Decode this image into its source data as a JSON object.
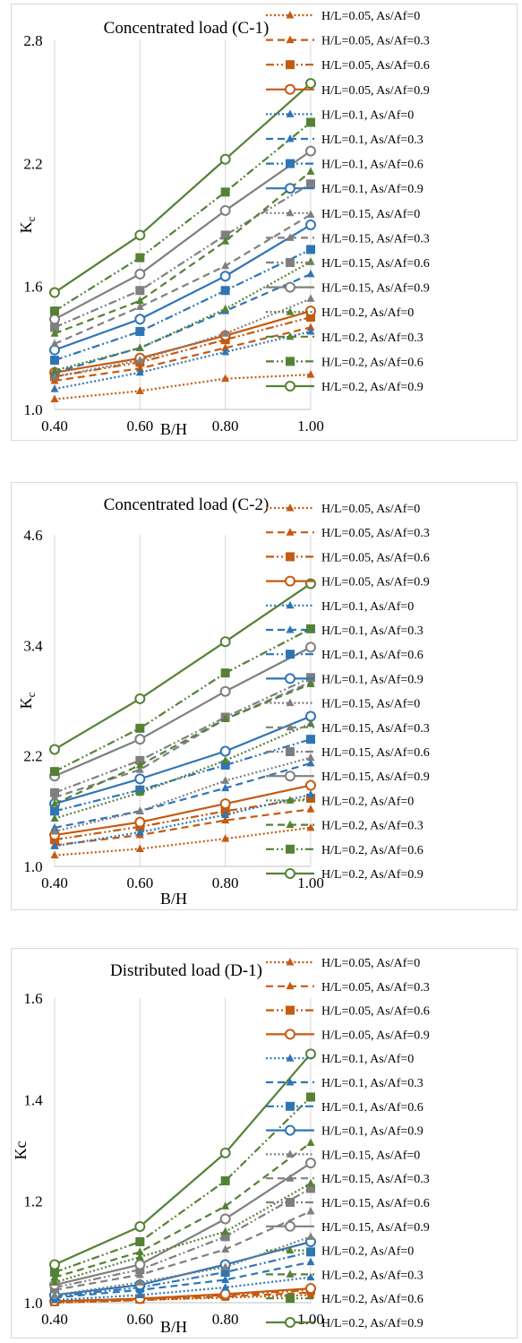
{
  "colors": {
    "orange": "#c55a11",
    "blue": "#2e75b6",
    "gray": "#7f7f7f",
    "green": "#548235",
    "grid": "#d9d9d9"
  },
  "chart_data": [
    {
      "type": "line",
      "title": "Concentrated load (C-1)",
      "xlabel": "B/H",
      "ylabel": "K",
      "ylabel_sub": "c",
      "categories": [
        "0.40",
        "0.60",
        "0.80",
        "1.00"
      ],
      "x_ticks": [
        "0.40",
        "0.60",
        "0.80",
        "1.00"
      ],
      "y_ticks": [
        "1.0",
        "1.6",
        "2.2",
        "2.8"
      ],
      "ylim": [
        1.0,
        2.8
      ],
      "grid": "vertical",
      "legend": "right",
      "series": [
        {
          "name": "H/L=0.05, As/Af=0",
          "color": "orange",
          "dash": "dotted",
          "marker": "triangle",
          "values": [
            1.05,
            1.09,
            1.15,
            1.17
          ]
        },
        {
          "name": "H/L=0.05, As/Af=0.3",
          "color": "orange",
          "dash": "dashed",
          "marker": "triangle",
          "values": [
            1.14,
            1.2,
            1.3,
            1.4
          ]
        },
        {
          "name": "H/L=0.05, As/Af=0.6",
          "color": "orange",
          "dash": "dashdotdot",
          "marker": "square",
          "values": [
            1.16,
            1.23,
            1.34,
            1.45
          ]
        },
        {
          "name": "H/L=0.05, As/Af=0.9",
          "color": "orange",
          "dash": "solid",
          "marker": "circle",
          "values": [
            1.18,
            1.25,
            1.36,
            1.48
          ]
        },
        {
          "name": "H/L=0.1, As/Af=0",
          "color": "blue",
          "dash": "dotted",
          "marker": "triangle",
          "values": [
            1.1,
            1.18,
            1.28,
            1.38
          ]
        },
        {
          "name": "H/L=0.1, As/Af=0.3",
          "color": "blue",
          "dash": "dashed",
          "marker": "triangle",
          "values": [
            1.18,
            1.3,
            1.48,
            1.66
          ]
        },
        {
          "name": "H/L=0.1, As/Af=0.6",
          "color": "blue",
          "dash": "dashdotdot",
          "marker": "square",
          "values": [
            1.24,
            1.38,
            1.58,
            1.78
          ]
        },
        {
          "name": "H/L=0.1, As/Af=0.9",
          "color": "blue",
          "dash": "solid",
          "marker": "circle",
          "values": [
            1.29,
            1.44,
            1.65,
            1.9
          ]
        },
        {
          "name": "H/L=0.15, As/Af=0",
          "color": "gray",
          "dash": "dotted",
          "marker": "triangle",
          "values": [
            1.16,
            1.24,
            1.37,
            1.54
          ]
        },
        {
          "name": "H/L=0.15, As/Af=0.3",
          "color": "gray",
          "dash": "dashed",
          "marker": "triangle",
          "values": [
            1.32,
            1.5,
            1.7,
            1.95
          ]
        },
        {
          "name": "H/L=0.15, As/Af=0.6",
          "color": "gray",
          "dash": "dashdotdot",
          "marker": "square",
          "values": [
            1.4,
            1.58,
            1.85,
            2.1
          ]
        },
        {
          "name": "H/L=0.15, As/Af=0.9",
          "color": "gray",
          "dash": "solid",
          "marker": "circle",
          "values": [
            1.44,
            1.66,
            1.97,
            2.26
          ]
        },
        {
          "name": "H/L=0.2, As/Af=0",
          "color": "green",
          "dash": "dotted",
          "marker": "triangle",
          "values": [
            1.19,
            1.3,
            1.49,
            1.72
          ]
        },
        {
          "name": "H/L=0.2, As/Af=0.3",
          "color": "green",
          "dash": "dashed",
          "marker": "triangle",
          "values": [
            1.37,
            1.53,
            1.82,
            2.16
          ]
        },
        {
          "name": "H/L=0.2, As/Af=0.6",
          "color": "green",
          "dash": "dashdotdot",
          "marker": "square",
          "values": [
            1.48,
            1.74,
            2.06,
            2.4
          ]
        },
        {
          "name": "H/L=0.2, As/Af=0.9",
          "color": "green",
          "dash": "solid",
          "marker": "circle",
          "values": [
            1.57,
            1.85,
            2.22,
            2.59
          ]
        }
      ]
    },
    {
      "type": "line",
      "title": "Concentrated load (C-2)",
      "xlabel": "B/H",
      "ylabel": "K",
      "ylabel_sub": "c",
      "categories": [
        "0.40",
        "0.60",
        "0.80",
        "1.00"
      ],
      "x_ticks": [
        "0.40",
        "0.60",
        "0.80",
        "1.00"
      ],
      "y_ticks": [
        "1.0",
        "2.2",
        "3.4",
        "4.6"
      ],
      "ylim": [
        1.0,
        4.6
      ],
      "grid": "vertical",
      "legend": "right",
      "series": [
        {
          "name": "H/L=0.05, As/Af=0",
          "color": "orange",
          "dash": "dotted",
          "marker": "triangle",
          "values": [
            1.12,
            1.19,
            1.3,
            1.42
          ]
        },
        {
          "name": "H/L=0.05, As/Af=0.3",
          "color": "orange",
          "dash": "dashed",
          "marker": "triangle",
          "values": [
            1.23,
            1.34,
            1.5,
            1.62
          ]
        },
        {
          "name": "H/L=0.05, As/Af=0.6",
          "color": "orange",
          "dash": "dashdotdot",
          "marker": "square",
          "values": [
            1.29,
            1.43,
            1.6,
            1.74
          ]
        },
        {
          "name": "H/L=0.05, As/Af=0.9",
          "color": "orange",
          "dash": "solid",
          "marker": "circle",
          "values": [
            1.34,
            1.48,
            1.68,
            1.88
          ]
        },
        {
          "name": "H/L=0.1, As/Af=0",
          "color": "blue",
          "dash": "dotted",
          "marker": "triangle",
          "values": [
            1.22,
            1.37,
            1.56,
            1.78
          ]
        },
        {
          "name": "H/L=0.1, As/Af=0.3",
          "color": "blue",
          "dash": "dashed",
          "marker": "triangle",
          "values": [
            1.42,
            1.6,
            1.85,
            2.12
          ]
        },
        {
          "name": "H/L=0.1, As/Af=0.6",
          "color": "blue",
          "dash": "dashdotdot",
          "marker": "square",
          "values": [
            1.6,
            1.83,
            2.1,
            2.38
          ]
        },
        {
          "name": "H/L=0.1, As/Af=0.9",
          "color": "blue",
          "dash": "solid",
          "marker": "circle",
          "values": [
            1.68,
            1.95,
            2.25,
            2.63
          ]
        },
        {
          "name": "H/L=0.15, As/Af=0",
          "color": "gray",
          "dash": "dotted",
          "marker": "triangle",
          "values": [
            1.38,
            1.6,
            1.93,
            2.18
          ]
        },
        {
          "name": "H/L=0.15, As/Af=0.3",
          "color": "gray",
          "dash": "dashed",
          "marker": "triangle",
          "values": [
            1.75,
            2.05,
            2.6,
            3.0
          ]
        },
        {
          "name": "H/L=0.15, As/Af=0.6",
          "color": "gray",
          "dash": "dashdotdot",
          "marker": "square",
          "values": [
            1.8,
            2.15,
            2.62,
            3.05
          ]
        },
        {
          "name": "H/L=0.15, As/Af=0.9",
          "color": "gray",
          "dash": "solid",
          "marker": "circle",
          "values": [
            1.98,
            2.38,
            2.9,
            3.38
          ]
        },
        {
          "name": "H/L=0.2, As/Af=0",
          "color": "green",
          "dash": "dotted",
          "marker": "triangle",
          "values": [
            1.52,
            1.8,
            2.15,
            2.55
          ]
        },
        {
          "name": "H/L=0.2, As/Af=0.3",
          "color": "green",
          "dash": "dashed",
          "marker": "triangle",
          "values": [
            1.68,
            2.1,
            2.6,
            2.98
          ]
        },
        {
          "name": "H/L=0.2, As/Af=0.6",
          "color": "green",
          "dash": "dashdotdot",
          "marker": "square",
          "values": [
            2.03,
            2.5,
            3.1,
            3.58
          ]
        },
        {
          "name": "H/L=0.2, As/Af=0.9",
          "color": "green",
          "dash": "solid",
          "marker": "circle",
          "values": [
            2.27,
            2.82,
            3.44,
            4.07
          ]
        }
      ]
    },
    {
      "type": "line",
      "title": "Distributed load (D-1)",
      "xlabel": "B/H",
      "ylabel": "Kc",
      "ylabel_sub": "",
      "categories": [
        "0.40",
        "0.60",
        "0.80",
        "1.00"
      ],
      "x_ticks": [
        "0.40",
        "0.60",
        "0.80",
        "1.00"
      ],
      "y_ticks": [
        "1.0",
        "1.2",
        "1.4",
        "1.6"
      ],
      "ylim": [
        1.0,
        1.6
      ],
      "grid": "vertical",
      "legend": "right",
      "series": [
        {
          "name": "H/L=0.05, As/Af=0",
          "color": "orange",
          "dash": "dotted",
          "marker": "triangle",
          "values": [
            1.0,
            1.005,
            1.01,
            1.015
          ]
        },
        {
          "name": "H/L=0.05, As/Af=0.3",
          "color": "orange",
          "dash": "dashed",
          "marker": "triangle",
          "values": [
            1.0,
            1.005,
            1.012,
            1.02
          ]
        },
        {
          "name": "H/L=0.05, As/Af=0.6",
          "color": "orange",
          "dash": "dashdotdot",
          "marker": "square",
          "values": [
            1.002,
            1.007,
            1.015,
            1.025
          ]
        },
        {
          "name": "H/L=0.05, As/Af=0.9",
          "color": "orange",
          "dash": "solid",
          "marker": "circle",
          "values": [
            1.003,
            1.008,
            1.017,
            1.028
          ]
        },
        {
          "name": "H/L=0.1, As/Af=0",
          "color": "blue",
          "dash": "dotted",
          "marker": "triangle",
          "values": [
            1.005,
            1.015,
            1.03,
            1.05
          ]
        },
        {
          "name": "H/L=0.1, As/Af=0.3",
          "color": "blue",
          "dash": "dashed",
          "marker": "triangle",
          "values": [
            1.01,
            1.025,
            1.045,
            1.08
          ]
        },
        {
          "name": "H/L=0.1, As/Af=0.6",
          "color": "blue",
          "dash": "dashdotdot",
          "marker": "square",
          "values": [
            1.012,
            1.03,
            1.06,
            1.1
          ]
        },
        {
          "name": "H/L=0.1, As/Af=0.9",
          "color": "blue",
          "dash": "solid",
          "marker": "circle",
          "values": [
            1.015,
            1.035,
            1.075,
            1.12
          ]
        },
        {
          "name": "H/L=0.15, As/Af=0",
          "color": "gray",
          "dash": "dotted",
          "marker": "triangle",
          "values": [
            1.015,
            1.04,
            1.07,
            1.13
          ]
        },
        {
          "name": "H/L=0.15, As/Af=0.3",
          "color": "gray",
          "dash": "dashed",
          "marker": "triangle",
          "values": [
            1.025,
            1.055,
            1.105,
            1.18
          ]
        },
        {
          "name": "H/L=0.15, As/Af=0.6",
          "color": "gray",
          "dash": "dashdotdot",
          "marker": "square",
          "values": [
            1.03,
            1.065,
            1.13,
            1.225
          ]
        },
        {
          "name": "H/L=0.15, As/Af=0.9",
          "color": "gray",
          "dash": "solid",
          "marker": "circle",
          "values": [
            1.035,
            1.075,
            1.165,
            1.275
          ]
        },
        {
          "name": "H/L=0.2, As/Af=0",
          "color": "green",
          "dash": "dotted",
          "marker": "triangle",
          "values": [
            1.04,
            1.09,
            1.14,
            1.235
          ]
        },
        {
          "name": "H/L=0.2, As/Af=0.3",
          "color": "green",
          "dash": "dashed",
          "marker": "triangle",
          "values": [
            1.05,
            1.1,
            1.19,
            1.315
          ]
        },
        {
          "name": "H/L=0.2, As/Af=0.6",
          "color": "green",
          "dash": "dashdotdot",
          "marker": "square",
          "values": [
            1.06,
            1.12,
            1.24,
            1.405
          ]
        },
        {
          "name": "H/L=0.2, As/Af=0.9",
          "color": "green",
          "dash": "solid",
          "marker": "circle",
          "values": [
            1.075,
            1.15,
            1.295,
            1.49
          ]
        }
      ]
    }
  ]
}
